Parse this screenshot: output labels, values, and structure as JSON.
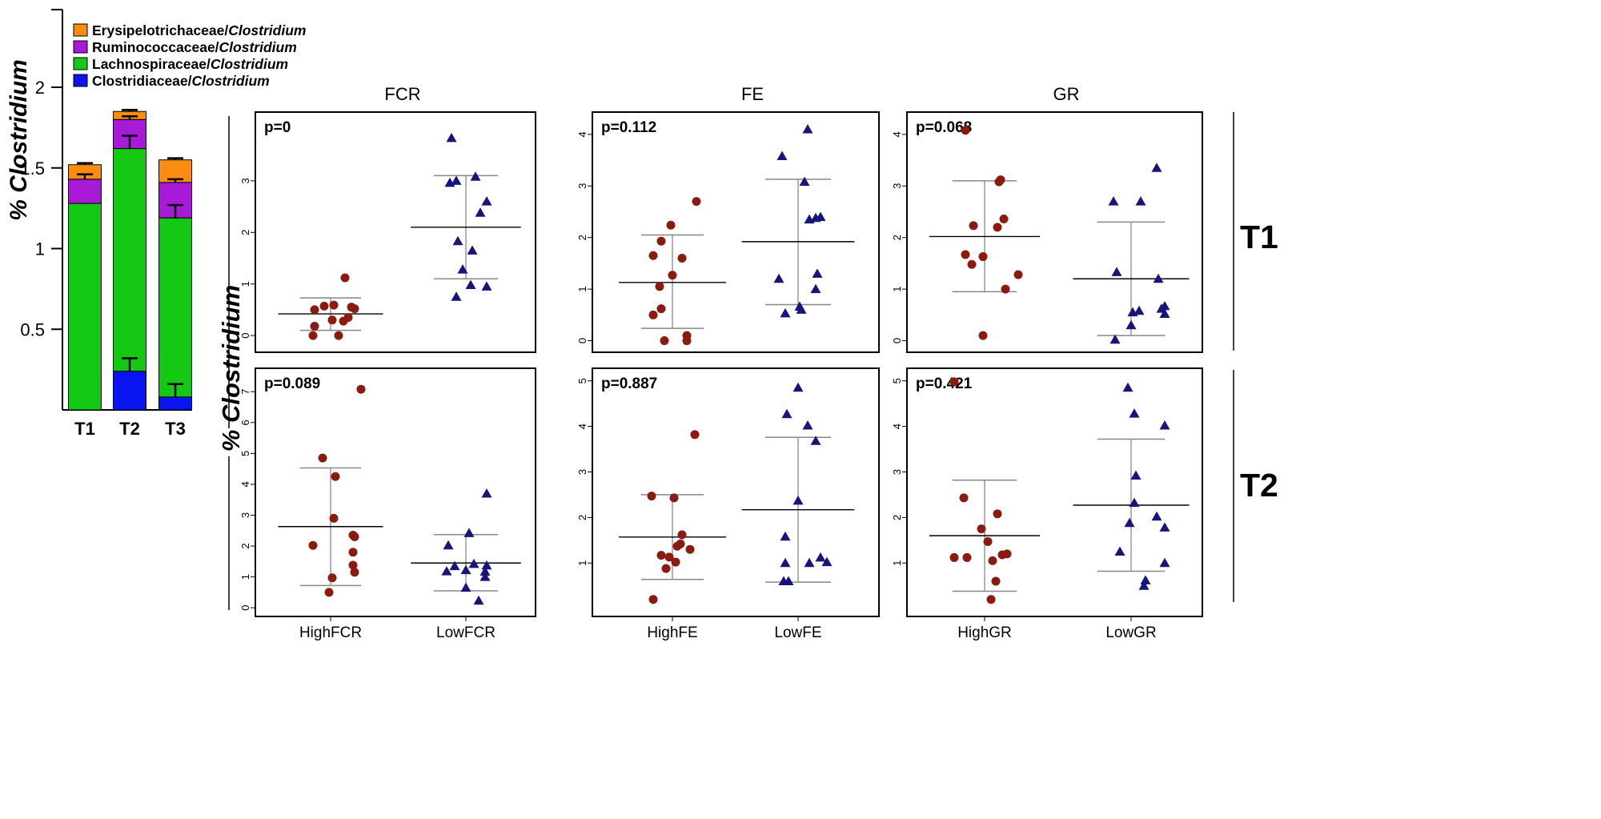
{
  "figure_labels": {
    "panel_ylabel": "% Clostridium",
    "row_labels": [
      "T1",
      "T2"
    ]
  },
  "chart_data": [
    {
      "id": "stacked",
      "type": "bar",
      "stacked": true,
      "title": "",
      "xlabel": "",
      "ylabel": "% Clostridium",
      "ylim": [
        0,
        2.5
      ],
      "yticks": [
        0.5,
        1,
        1.5,
        2
      ],
      "ytick_labels": [
        "0.5",
        "1",
        "1.5",
        "2"
      ],
      "categories": [
        "T1",
        "T2",
        "T3"
      ],
      "series": [
        {
          "name": "Clostridiaceae/Clostridium",
          "family": "Clostridiaceae",
          "genus": "Clostridium",
          "color": "#0a14f0",
          "values": [
            0.0,
            0.24,
            0.08
          ],
          "err": [
            0.0,
            0.08,
            0.08
          ]
        },
        {
          "name": "Lachnospiraceae/Clostridium",
          "family": "Lachnospiraceae",
          "genus": "Clostridium",
          "color": "#14c814",
          "values": [
            1.28,
            1.38,
            1.11
          ],
          "err": [
            0.0,
            0.08,
            0.08
          ]
        },
        {
          "name": "Ruminococcaceae/Clostridium",
          "family": "Ruminococcaceae",
          "genus": "Clostridium",
          "color": "#a81bd6",
          "values": [
            0.15,
            0.18,
            0.22
          ],
          "err": [
            0.03,
            0.02,
            0.02
          ]
        },
        {
          "name": "Erysipelotrichaceae/Clostridium",
          "family": "Erysipelotrichaceae",
          "genus": "Clostridium",
          "color": "#fa8c0f",
          "values": [
            0.09,
            0.05,
            0.14
          ],
          "err": [
            0.01,
            0.01,
            0.01
          ]
        }
      ],
      "legend_order": [
        3,
        2,
        1,
        0
      ],
      "legend_position": "top-left"
    },
    {
      "id": "FCR_T1",
      "type": "scatter",
      "title": "FCR",
      "row": "T1",
      "col": 0,
      "pvalue": "p=0",
      "ylim": [
        -0.2,
        4.1
      ],
      "yticks": [
        0,
        1,
        2,
        3
      ],
      "groups": [
        "HighFCR",
        "LowFCR"
      ],
      "high": {
        "values": [
          0.0,
          0.0,
          0.18,
          0.28,
          0.3,
          0.35,
          0.5,
          0.52,
          0.55,
          0.57,
          0.59,
          1.12
        ],
        "offsets": [
          -0.55,
          0.25,
          -0.5,
          0.4,
          0.05,
          0.55,
          -0.5,
          0.75,
          0.65,
          -0.2,
          0.1,
          0.45
        ],
        "mean": 0.42,
        "low": 0.1,
        "high": 0.73
      },
      "low": {
        "values": [
          0.75,
          0.95,
          0.98,
          1.28,
          1.65,
          1.83,
          2.38,
          2.6,
          2.96,
          3.0,
          3.08,
          3.83
        ],
        "offsets": [
          -0.3,
          0.65,
          0.15,
          -0.1,
          0.2,
          -0.25,
          0.45,
          0.65,
          -0.5,
          -0.3,
          0.3,
          -0.45
        ],
        "mean": 2.1,
        "low": 1.1,
        "high": 3.1
      }
    },
    {
      "id": "FE_T1",
      "type": "scatter",
      "title": "FE",
      "row": "T1",
      "col": 1,
      "pvalue": "p=0.112",
      "ylim": [
        -0.1,
        4.2
      ],
      "yticks": [
        0,
        1,
        2,
        3,
        4
      ],
      "groups": [
        "HighFE",
        "LowFE"
      ],
      "high": {
        "values": [
          0.0,
          0.0,
          0.1,
          0.5,
          0.62,
          1.05,
          1.27,
          1.6,
          1.65,
          1.93,
          2.24,
          2.7
        ],
        "offsets": [
          -0.25,
          0.45,
          0.45,
          -0.6,
          -0.35,
          -0.4,
          0.0,
          0.3,
          -0.6,
          -0.35,
          -0.05,
          0.75
        ],
        "mean": 1.13,
        "low": 0.24,
        "high": 2.05
      },
      "low": {
        "values": [
          0.53,
          0.6,
          0.66,
          1.0,
          1.2,
          1.3,
          2.35,
          2.38,
          2.4,
          3.08,
          3.58,
          4.1
        ],
        "offsets": [
          -0.4,
          0.1,
          0.05,
          0.55,
          -0.6,
          0.6,
          0.35,
          0.55,
          0.7,
          0.2,
          -0.5,
          0.3
        ],
        "mean": 1.92,
        "low": 0.7,
        "high": 3.13
      }
    },
    {
      "id": "GR_T1",
      "type": "scatter",
      "title": "GR",
      "row": "T1",
      "col": 2,
      "pvalue": "p=0.068",
      "ylim": [
        -0.1,
        4.2
      ],
      "yticks": [
        0,
        1,
        2,
        3,
        4
      ],
      "groups": [
        "HighGR",
        "LowGR"
      ],
      "high": {
        "values": [
          0.1,
          1.0,
          1.28,
          1.48,
          1.63,
          1.67,
          2.2,
          2.23,
          2.36,
          3.08,
          3.12,
          4.08
        ],
        "offsets": [
          -0.05,
          0.65,
          1.05,
          -0.4,
          -0.05,
          -0.6,
          0.4,
          -0.35,
          0.6,
          0.45,
          0.5,
          -0.6
        ],
        "mean": 2.02,
        "low": 0.95,
        "high": 3.1
      },
      "low": {
        "values": [
          0.02,
          0.3,
          0.52,
          0.55,
          0.58,
          0.62,
          0.67,
          1.2,
          1.33,
          2.7,
          2.7,
          3.35
        ],
        "offsets": [
          -0.5,
          0.0,
          1.05,
          0.05,
          0.25,
          0.95,
          1.05,
          0.85,
          -0.45,
          -0.55,
          0.3,
          0.8
        ],
        "mean": 1.2,
        "low": 0.1,
        "high": 2.3
      }
    },
    {
      "id": "FCR_T2",
      "type": "scatter",
      "title": "FCR",
      "row": "T2",
      "col": 0,
      "pvalue": "p=0.089",
      "ylim": [
        -0.1,
        7.5
      ],
      "yticks": [
        0,
        1,
        2,
        3,
        4,
        5,
        6,
        7
      ],
      "groups": [
        "HighFCR",
        "LowFCR"
      ],
      "high": {
        "values": [
          0.5,
          0.97,
          1.15,
          1.38,
          1.8,
          2.02,
          2.3,
          2.35,
          2.9,
          4.25,
          4.85,
          7.08
        ],
        "offsets": [
          -0.05,
          0.05,
          0.75,
          0.7,
          0.7,
          -0.55,
          0.75,
          0.7,
          0.1,
          0.15,
          -0.25,
          0.95
        ],
        "mean": 2.63,
        "low": 0.72,
        "high": 4.53
      },
      "low": {
        "values": [
          0.23,
          0.65,
          1.0,
          1.17,
          1.18,
          1.22,
          1.35,
          1.37,
          1.42,
          2.42,
          3.7,
          2.02
        ],
        "offsets": [
          0.4,
          0.0,
          0.6,
          0.6,
          -0.6,
          0.0,
          -0.35,
          0.65,
          0.25,
          0.1,
          0.65,
          -0.55
        ],
        "mean": 1.45,
        "low": 0.55,
        "high": 2.37
      }
    },
    {
      "id": "FE_T2",
      "type": "scatter",
      "title": "FE",
      "row": "T2",
      "col": 1,
      "pvalue": "p=0.887",
      "ylim": [
        -0.05,
        5.1
      ],
      "yticks": [
        1,
        2,
        3,
        4,
        5
      ],
      "groups": [
        "HighFE",
        "LowFE"
      ],
      "high": {
        "values": [
          0.2,
          0.88,
          1.02,
          1.13,
          1.17,
          1.3,
          1.37,
          1.42,
          1.62,
          2.43,
          2.47,
          3.82
        ],
        "offsets": [
          -0.6,
          -0.2,
          0.1,
          -0.1,
          -0.35,
          0.55,
          0.15,
          0.25,
          0.3,
          0.05,
          -0.65,
          0.7
        ],
        "mean": 1.57,
        "low": 0.64,
        "high": 2.5
      },
      "low": {
        "values": [
          0.6,
          0.6,
          1.0,
          1.0,
          1.02,
          1.12,
          1.58,
          2.37,
          3.68,
          4.02,
          4.27,
          4.85
        ],
        "offsets": [
          -0.45,
          -0.3,
          -0.4,
          0.35,
          0.9,
          0.7,
          -0.4,
          0.0,
          0.55,
          0.3,
          -0.35,
          0.0
        ],
        "mean": 2.17,
        "low": 0.58,
        "high": 3.76
      }
    },
    {
      "id": "GR_T2",
      "type": "scatter",
      "title": "GR",
      "row": "T2",
      "col": 2,
      "pvalue": "p=0.421",
      "ylim": [
        -0.05,
        5.1
      ],
      "yticks": [
        1,
        2,
        3,
        4,
        5
      ],
      "groups": [
        "HighGR",
        "LowGR"
      ],
      "high": {
        "values": [
          0.2,
          0.6,
          1.05,
          1.12,
          1.12,
          1.18,
          1.2,
          1.47,
          1.75,
          2.08,
          2.43,
          4.98
        ],
        "offsets": [
          0.2,
          0.35,
          0.25,
          -0.55,
          -0.95,
          0.55,
          0.7,
          0.1,
          -0.1,
          0.4,
          -0.65,
          -0.95
        ],
        "mean": 1.6,
        "low": 0.38,
        "high": 2.82
      },
      "low": {
        "values": [
          0.5,
          0.62,
          1.0,
          1.25,
          1.78,
          1.88,
          2.02,
          2.32,
          2.92,
          4.02,
          4.28,
          4.85
        ],
        "offsets": [
          0.4,
          0.45,
          1.05,
          -0.35,
          1.05,
          -0.05,
          0.8,
          0.1,
          0.15,
          1.05,
          0.1,
          -0.1
        ],
        "mean": 2.27,
        "low": 0.82,
        "high": 3.72
      }
    }
  ]
}
